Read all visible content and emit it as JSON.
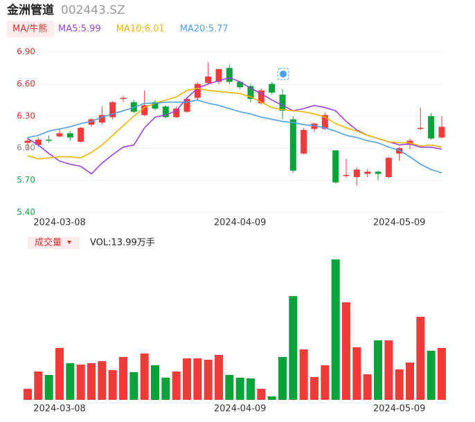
{
  "header": {
    "name": "金洲管道",
    "code": "002443.SZ"
  },
  "chart_data": [
    {
      "type": "candlestick",
      "legend": {
        "button": "MA/牛熊",
        "items": [
          {
            "text": "MA5:5.99",
            "color": "#9b3fe0"
          },
          {
            "text": "MA10:6.01",
            "color": "#f0b400"
          },
          {
            "text": "MA20:5.77",
            "color": "#4aa0e8"
          }
        ]
      },
      "categories": [
        null,
        null,
        null,
        "2024-03-08",
        null,
        null,
        null,
        null,
        null,
        null,
        null,
        null,
        null,
        null,
        null,
        null,
        null,
        null,
        null,
        null,
        "2024-04-09",
        null,
        null,
        null,
        null,
        null,
        null,
        null,
        null,
        null,
        null,
        null,
        null,
        null,
        null,
        "2024-05-09",
        null,
        null,
        null,
        null
      ],
      "open": [
        6.05,
        6.03,
        6.08,
        6.11,
        6.14,
        6.06,
        6.22,
        6.24,
        6.29,
        6.46,
        6.43,
        6.31,
        6.43,
        6.39,
        6.29,
        6.34,
        6.47,
        6.61,
        6.62,
        6.75,
        6.62,
        6.58,
        6.42,
        6.6,
        6.5,
        6.27,
        5.95,
        6.18,
        6.18,
        5.98,
        5.74,
        5.73,
        5.76,
        5.78,
        5.73,
        5.95,
        6.03,
        6.18,
        6.3,
        6.1
      ],
      "close": [
        6.07,
        6.08,
        6.07,
        6.14,
        6.1,
        6.19,
        6.27,
        6.31,
        6.43,
        6.47,
        6.34,
        6.4,
        6.37,
        6.29,
        6.37,
        6.46,
        6.6,
        6.67,
        6.74,
        6.62,
        6.57,
        6.46,
        6.54,
        6.52,
        6.35,
        5.79,
        6.17,
        6.23,
        6.31,
        5.68,
        5.75,
        5.8,
        5.78,
        5.76,
        5.91,
        6.0,
        6.07,
        6.19,
        6.09,
        6.2
      ],
      "high": [
        6.1,
        6.1,
        6.12,
        6.18,
        6.16,
        6.2,
        6.28,
        6.39,
        6.44,
        6.49,
        6.45,
        6.54,
        6.45,
        6.4,
        6.39,
        6.48,
        6.62,
        6.8,
        6.74,
        6.78,
        6.63,
        6.6,
        6.56,
        6.62,
        6.55,
        6.3,
        6.19,
        6.24,
        6.33,
        5.98,
        5.9,
        5.82,
        5.8,
        5.79,
        5.92,
        6.01,
        6.09,
        6.38,
        6.33,
        6.3
      ],
      "low": [
        5.98,
        6.01,
        6.05,
        6.1,
        6.07,
        6.05,
        6.2,
        6.22,
        6.27,
        6.43,
        6.33,
        6.3,
        6.35,
        6.28,
        6.28,
        6.33,
        6.45,
        6.6,
        6.6,
        6.6,
        6.55,
        6.43,
        6.41,
        6.5,
        6.27,
        5.77,
        5.94,
        6.15,
        6.17,
        5.67,
        5.72,
        5.65,
        5.73,
        5.7,
        5.72,
        5.88,
        5.99,
        6.17,
        6.08,
        6.09
      ],
      "up_color": "#f03b3b",
      "down_color": "#0aa33a",
      "series": [
        {
          "name": "MA5",
          "color": "#9b3fe0",
          "values": [
            6.09,
            6.03,
            5.95,
            5.88,
            5.85,
            5.83,
            5.76,
            5.86,
            5.94,
            6.01,
            6.03,
            6.19,
            6.29,
            6.31,
            6.35,
            6.47,
            6.56,
            6.6,
            6.63,
            6.66,
            6.62,
            6.56,
            6.51,
            6.45,
            6.4,
            6.35,
            6.37,
            6.4,
            6.38,
            6.35,
            6.25,
            6.17,
            6.12,
            6.09,
            6.06,
            6.03,
            6.04,
            6.01,
            6.01,
            5.99
          ]
        },
        {
          "name": "MA10",
          "color": "#f0b400",
          "values": [
            5.93,
            5.9,
            5.91,
            5.92,
            5.92,
            5.91,
            5.96,
            6.03,
            6.12,
            6.21,
            6.3,
            6.38,
            6.42,
            6.45,
            6.48,
            6.54,
            6.56,
            6.54,
            6.53,
            6.52,
            6.51,
            6.48,
            6.43,
            6.38,
            6.36,
            6.35,
            6.34,
            6.32,
            6.29,
            6.23,
            6.19,
            6.16,
            6.12,
            6.09,
            6.06,
            6.05,
            6.05,
            6.02,
            6.03,
            6.01
          ]
        },
        {
          "name": "MA20",
          "color": "#4aa0e8",
          "values": [
            6.1,
            6.12,
            6.16,
            6.18,
            6.2,
            6.23,
            6.25,
            6.29,
            6.32,
            6.35,
            6.38,
            6.42,
            6.42,
            6.43,
            6.43,
            6.43,
            6.45,
            6.42,
            6.4,
            6.37,
            6.34,
            6.32,
            6.29,
            6.27,
            6.25,
            6.24,
            6.22,
            6.21,
            6.19,
            6.16,
            6.12,
            6.1,
            6.07,
            6.05,
            6.01,
            5.98,
            5.92,
            5.85,
            5.8,
            5.77
          ]
        }
      ],
      "ylim": [
        5.4,
        6.9
      ],
      "yticks": [
        {
          "value": 6.9,
          "label": "6.90"
        },
        {
          "value": 6.6,
          "label": "6.60"
        },
        {
          "value": 6.3,
          "label": "6.30"
        },
        {
          "value": 6.0,
          "label": "6.00"
        },
        {
          "value": 5.7,
          "label": "5.70"
        },
        {
          "value": 5.4,
          "label": "5.40"
        }
      ],
      "ytick_colors": [
        "#e03030",
        "#e03030",
        "#e03030",
        "#888888",
        "#18a048",
        "#18a048"
      ],
      "grid": true
    },
    {
      "type": "bar",
      "button": "成交量",
      "label": "VOL:13.99万手",
      "values": [
        2.98,
        7.65,
        6.71,
        13.99,
        9.89,
        9.51,
        9.89,
        10.44,
        8.02,
        11.56,
        7.46,
        12.5,
        9.33,
        5.97,
        7.65,
        11.19,
        11.19,
        10.82,
        12.12,
        6.71,
        5.97,
        5.78,
        2.98,
        0.93,
        11.56,
        27.98,
        13.62,
        6.16,
        9.33,
        37.86,
        26.3,
        14.18,
        6.9,
        16.04,
        16.04,
        8.21,
        10.07,
        22.38,
        13.24,
        13.99
      ]
    }
  ]
}
